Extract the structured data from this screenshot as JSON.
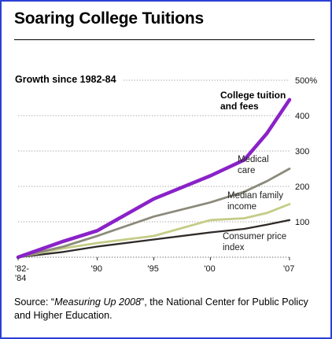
{
  "title": "Soaring College Tuitions",
  "source": {
    "prefix": "Source: “",
    "italic": "Measuring Up 2008",
    "suffix": "”, the National Center for Public Policy and Higher Education."
  },
  "chart_data": {
    "type": "line",
    "title": "Growth since 1982-84",
    "xlabel": "",
    "ylabel": "",
    "x": [
      1983,
      1987,
      1990,
      1995,
      2000,
      2003,
      2005,
      2007
    ],
    "xlim": [
      1983,
      2007
    ],
    "ylim": [
      0,
      500
    ],
    "x_ticks": [
      {
        "value": 1983,
        "label": "'82-\n'84"
      },
      {
        "value": 1990,
        "label": "'90"
      },
      {
        "value": 1995,
        "label": "'95"
      },
      {
        "value": 2000,
        "label": "'00"
      },
      {
        "value": 2007,
        "label": "'07"
      }
    ],
    "y_ticks": [
      {
        "value": 100,
        "label": "100"
      },
      {
        "value": 200,
        "label": "200"
      },
      {
        "value": 300,
        "label": "300"
      },
      {
        "value": 400,
        "label": "400"
      },
      {
        "value": 500,
        "label": "500%"
      }
    ],
    "grid": true,
    "series": [
      {
        "name": "College tuition and fees",
        "color": "#8a22c8",
        "width": 4.5,
        "label_bold": true,
        "values": [
          0,
          45,
          75,
          165,
          230,
          275,
          350,
          445
        ]
      },
      {
        "name": "Medical care",
        "color": "#8c8a7a",
        "width": 2.8,
        "label_bold": false,
        "values": [
          0,
          30,
          60,
          115,
          155,
          185,
          215,
          250
        ]
      },
      {
        "name": "Median family income",
        "color": "#c4cc86",
        "width": 2.8,
        "label_bold": false,
        "values": [
          0,
          25,
          40,
          60,
          105,
          110,
          125,
          150
        ]
      },
      {
        "name": "Consumer price index",
        "color": "#2e2a28",
        "width": 2.3,
        "label_bold": false,
        "values": [
          0,
          15,
          30,
          50,
          70,
          80,
          92,
          105
        ]
      }
    ]
  }
}
